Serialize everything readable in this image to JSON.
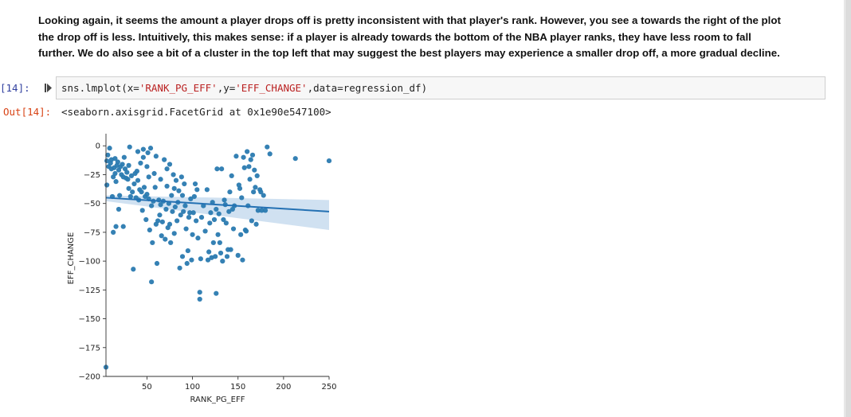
{
  "markdown": {
    "line1": "Looking again, it seems the amount a player drops off is pretty inconsistent with that player's rank. However, you see a towards the right of the plot",
    "line2": "the drop off is less. Intuitively, this makes sense: if a player is already towards the bottom of the NBA player ranks, they have less room to fall",
    "line3": "further. We do also see a bit of a cluster in the top left that may suggest the best players may experience a smaller drop off, a more gradual decline."
  },
  "input_cell": {
    "prompt": "[14]:",
    "code_prefix": "sns.lmplot(x=",
    "x_arg": "'RANK_PG_EFF'",
    "mid": ",y=",
    "y_arg": "'EFF_CHANGE'",
    "code_suffix": ",data=regression_df)",
    "run_icon": "run-cell-icon"
  },
  "output_cell": {
    "prompt": "Out[14]:",
    "text": "<seaborn.axisgrid.FacetGrid at 0x1e90e547100>"
  },
  "colors": {
    "point": "#2a7ab0",
    "line": "#2471b3",
    "band": "#c8dcee",
    "in_prompt": "#303f9f",
    "out_prompt": "#d84315"
  },
  "chart_data": {
    "type": "scatter",
    "xlabel": "RANK_PG_EFF",
    "ylabel": "EFF_CHANGE",
    "xlim": [
      5,
      250
    ],
    "ylim": [
      -200,
      5
    ],
    "xticks": [
      50,
      100,
      150,
      200,
      250
    ],
    "yticks": [
      0,
      -25,
      -50,
      -75,
      -100,
      -125,
      -150,
      -175,
      -200
    ],
    "grid": false,
    "regression": {
      "x0": 5,
      "y0": -45,
      "x1": 250,
      "y1": -57,
      "band_left": [
        -43,
        -48
      ],
      "band_right": [
        -47,
        -73
      ]
    },
    "points": [
      [
        5,
        -192
      ],
      [
        6,
        -13
      ],
      [
        6,
        -34
      ],
      [
        7,
        -8
      ],
      [
        8,
        -18
      ],
      [
        9,
        -2
      ],
      [
        10,
        -15
      ],
      [
        11,
        -12
      ],
      [
        11,
        -20
      ],
      [
        12,
        -44
      ],
      [
        13,
        -27
      ],
      [
        13,
        -75
      ],
      [
        14,
        -19
      ],
      [
        15,
        -11
      ],
      [
        15,
        -24
      ],
      [
        16,
        -31
      ],
      [
        16,
        -70
      ],
      [
        17,
        -17
      ],
      [
        18,
        -14
      ],
      [
        19,
        -21
      ],
      [
        19,
        -55
      ],
      [
        20,
        -43
      ],
      [
        21,
        -18
      ],
      [
        22,
        -25
      ],
      [
        23,
        -16
      ],
      [
        24,
        -27
      ],
      [
        24,
        -70
      ],
      [
        25,
        -10
      ],
      [
        26,
        -20
      ],
      [
        27,
        -28
      ],
      [
        28,
        -23
      ],
      [
        29,
        -29
      ],
      [
        30,
        -37
      ],
      [
        30,
        -17
      ],
      [
        31,
        -1
      ],
      [
        32,
        -44
      ],
      [
        33,
        -26
      ],
      [
        34,
        -40
      ],
      [
        35,
        -107
      ],
      [
        36,
        -33
      ],
      [
        37,
        -24
      ],
      [
        38,
        -45
      ],
      [
        39,
        -22
      ],
      [
        40,
        -5
      ],
      [
        40,
        -30
      ],
      [
        41,
        -47
      ],
      [
        42,
        -38
      ],
      [
        43,
        -15
      ],
      [
        44,
        -40
      ],
      [
        45,
        -56
      ],
      [
        46,
        -3
      ],
      [
        46,
        -10
      ],
      [
        47,
        -36
      ],
      [
        48,
        -44
      ],
      [
        49,
        -64
      ],
      [
        50,
        -18
      ],
      [
        50,
        -42
      ],
      [
        51,
        -6
      ],
      [
        52,
        -46
      ],
      [
        52,
        -27
      ],
      [
        53,
        -73
      ],
      [
        54,
        -2
      ],
      [
        55,
        -118
      ],
      [
        55,
        -52
      ],
      [
        56,
        -84
      ],
      [
        57,
        -48
      ],
      [
        58,
        -24
      ],
      [
        59,
        -36
      ],
      [
        60,
        -68
      ],
      [
        60,
        -9
      ],
      [
        61,
        -102
      ],
      [
        62,
        -65
      ],
      [
        63,
        -47
      ],
      [
        64,
        -60
      ],
      [
        65,
        -51
      ],
      [
        65,
        -29
      ],
      [
        66,
        -78
      ],
      [
        67,
        -66
      ],
      [
        68,
        -48
      ],
      [
        69,
        -12
      ],
      [
        70,
        -81
      ],
      [
        71,
        -55
      ],
      [
        72,
        -20
      ],
      [
        72,
        -35
      ],
      [
        73,
        -71
      ],
      [
        74,
        -50
      ],
      [
        75,
        -16
      ],
      [
        75,
        -68
      ],
      [
        76,
        -84
      ],
      [
        77,
        -43
      ],
      [
        78,
        -57
      ],
      [
        79,
        -25
      ],
      [
        80,
        -37
      ],
      [
        80,
        -76
      ],
      [
        81,
        -53
      ],
      [
        82,
        -30
      ],
      [
        83,
        -65
      ],
      [
        84,
        -49
      ],
      [
        85,
        -39
      ],
      [
        86,
        -106
      ],
      [
        87,
        -60
      ],
      [
        88,
        -27
      ],
      [
        89,
        -43
      ],
      [
        89,
        -96
      ],
      [
        90,
        -57
      ],
      [
        91,
        -33
      ],
      [
        92,
        -52
      ],
      [
        93,
        -72
      ],
      [
        94,
        -102
      ],
      [
        95,
        -91
      ],
      [
        96,
        -62
      ],
      [
        97,
        -58
      ],
      [
        98,
        -46
      ],
      [
        99,
        -99
      ],
      [
        100,
        -77
      ],
      [
        101,
        -58
      ],
      [
        102,
        -44
      ],
      [
        103,
        -33
      ],
      [
        104,
        -65
      ],
      [
        105,
        -38
      ],
      [
        106,
        -80
      ],
      [
        108,
        -127
      ],
      [
        108,
        -133
      ],
      [
        109,
        -98
      ],
      [
        110,
        -62
      ],
      [
        112,
        -52
      ],
      [
        114,
        -74
      ],
      [
        116,
        -38
      ],
      [
        117,
        -99
      ],
      [
        118,
        -92
      ],
      [
        119,
        -67
      ],
      [
        120,
        -58
      ],
      [
        121,
        -97
      ],
      [
        122,
        -49
      ],
      [
        123,
        -84
      ],
      [
        124,
        -64
      ],
      [
        125,
        -96
      ],
      [
        126,
        -128
      ],
      [
        126,
        -55
      ],
      [
        127,
        -20
      ],
      [
        128,
        -77
      ],
      [
        129,
        -59
      ],
      [
        130,
        -84
      ],
      [
        131,
        -93
      ],
      [
        132,
        -20
      ],
      [
        133,
        -100
      ],
      [
        134,
        -64
      ],
      [
        135,
        -47
      ],
      [
        136,
        -51
      ],
      [
        137,
        -67
      ],
      [
        138,
        -96
      ],
      [
        139,
        -90
      ],
      [
        140,
        -57
      ],
      [
        141,
        -40
      ],
      [
        142,
        -90
      ],
      [
        143,
        -26
      ],
      [
        144,
        -55
      ],
      [
        145,
        -72
      ],
      [
        146,
        -52
      ],
      [
        148,
        -9
      ],
      [
        150,
        -95
      ],
      [
        151,
        -34
      ],
      [
        152,
        -37
      ],
      [
        153,
        -77
      ],
      [
        154,
        -45
      ],
      [
        155,
        -99
      ],
      [
        156,
        -10
      ],
      [
        157,
        -19
      ],
      [
        158,
        -73
      ],
      [
        159,
        -74
      ],
      [
        160,
        -5
      ],
      [
        161,
        -52
      ],
      [
        162,
        -18
      ],
      [
        163,
        -29
      ],
      [
        164,
        -12
      ],
      [
        165,
        -65
      ],
      [
        166,
        -8
      ],
      [
        167,
        -40
      ],
      [
        168,
        -21
      ],
      [
        169,
        -36
      ],
      [
        170,
        -68
      ],
      [
        171,
        -26
      ],
      [
        172,
        -56
      ],
      [
        174,
        -38
      ],
      [
        175,
        -40
      ],
      [
        176,
        -56
      ],
      [
        178,
        -43
      ],
      [
        180,
        -56
      ],
      [
        182,
        -1
      ],
      [
        185,
        -7
      ],
      [
        213,
        -11
      ],
      [
        250,
        -13
      ]
    ]
  }
}
